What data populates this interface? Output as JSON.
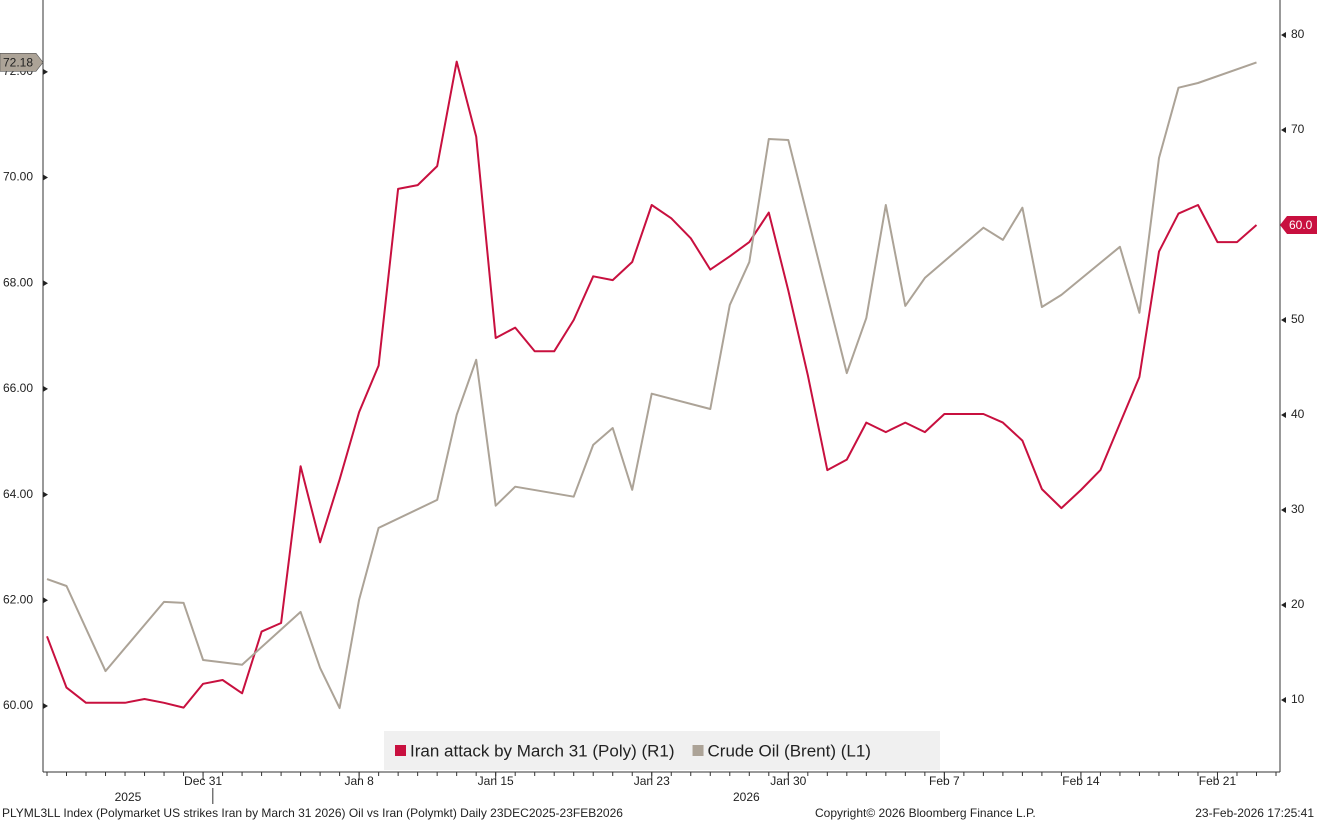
{
  "chart_data": {
    "type": "line",
    "x": [
      "2025-12-23",
      "2025-12-24",
      "2025-12-25",
      "2025-12-26",
      "2025-12-27",
      "2025-12-28",
      "2025-12-29",
      "2025-12-30",
      "2025-12-31",
      "2026-01-01",
      "2026-01-02",
      "2026-01-03",
      "2026-01-04",
      "2026-01-05",
      "2026-01-06",
      "2026-01-07",
      "2026-01-08",
      "2026-01-09",
      "2026-01-10",
      "2026-01-11",
      "2026-01-12",
      "2026-01-13",
      "2026-01-14",
      "2026-01-15",
      "2026-01-16",
      "2026-01-17",
      "2026-01-18",
      "2026-01-19",
      "2026-01-20",
      "2026-01-21",
      "2026-01-22",
      "2026-01-23",
      "2026-01-24",
      "2026-01-25",
      "2026-01-26",
      "2026-01-27",
      "2026-01-28",
      "2026-01-29",
      "2026-01-30",
      "2026-01-31",
      "2026-02-01",
      "2026-02-02",
      "2026-02-03",
      "2026-02-04",
      "2026-02-05",
      "2026-02-06",
      "2026-02-07",
      "2026-02-08",
      "2026-02-09",
      "2026-02-10",
      "2026-02-11",
      "2026-02-12",
      "2026-02-13",
      "2026-02-14",
      "2026-02-15",
      "2026-02-16",
      "2026-02-17",
      "2026-02-18",
      "2026-02-19",
      "2026-02-20",
      "2026-02-21",
      "2026-02-22",
      "2026-02-23"
    ],
    "series": [
      {
        "name": "Iran attack by March 31 (Poly) (R1)",
        "color": "#c8103f",
        "axis": "y2",
        "end_label": "60.0",
        "values": [
          16.7,
          11.3,
          9.7,
          9.7,
          9.7,
          10.1,
          9.7,
          9.2,
          11.7,
          12.1,
          10.7,
          17.2,
          18.1,
          34.6,
          26.6,
          33.2,
          40.3,
          45.2,
          63.8,
          64.2,
          66.2,
          77.2,
          69.3,
          48.1,
          49.2,
          46.7,
          46.7,
          50.0,
          54.6,
          54.2,
          56.1,
          62.1,
          60.7,
          58.6,
          55.3,
          56.7,
          58.2,
          61.3,
          53.1,
          44.2,
          34.2,
          35.3,
          39.2,
          38.2,
          39.2,
          38.2,
          40.1,
          40.1,
          40.1,
          39.2,
          37.3,
          32.2,
          30.2,
          32.1,
          34.2,
          39.1,
          44.0,
          57.2,
          61.2,
          62.1,
          58.2,
          58.2,
          60.0
        ]
      },
      {
        "name": "Crude Oil (Brent) (L1)",
        "color": "#aca397",
        "end_label": "72.18",
        "x": [
          "2025-12-23",
          "2025-12-24",
          "2025-12-26",
          "2025-12-29",
          "2025-12-30",
          "2025-12-31",
          "2026-01-02",
          "2026-01-05",
          "2026-01-06",
          "2026-01-07",
          "2026-01-08",
          "2026-01-09",
          "2026-01-12",
          "2026-01-13",
          "2026-01-14",
          "2026-01-15",
          "2026-01-16",
          "2026-01-19",
          "2026-01-20",
          "2026-01-21",
          "2026-01-22",
          "2026-01-23",
          "2026-01-26",
          "2026-01-27",
          "2026-01-28",
          "2026-01-29",
          "2026-01-30",
          "2026-02-02",
          "2026-02-03",
          "2026-02-04",
          "2026-02-05",
          "2026-02-06",
          "2026-02-09",
          "2026-02-10",
          "2026-02-11",
          "2026-02-12",
          "2026-02-13",
          "2026-02-16",
          "2026-02-17",
          "2026-02-18",
          "2026-02-19",
          "2026-02-20",
          "2026-02-23"
        ],
        "values": [
          62.4,
          62.27,
          60.66,
          61.97,
          61.95,
          60.87,
          60.78,
          61.78,
          60.72,
          59.96,
          62.01,
          63.37,
          63.9,
          65.51,
          66.55,
          63.79,
          64.15,
          63.96,
          64.94,
          65.26,
          64.09,
          65.91,
          65.62,
          67.59,
          68.4,
          70.73,
          70.71,
          66.3,
          67.34,
          69.48,
          67.57,
          68.1,
          69.05,
          68.82,
          69.43,
          67.55,
          67.78,
          68.69,
          67.44,
          70.37,
          71.7,
          71.79,
          72.18
        ]
      }
    ],
    "xlim": [
      "2025-12-23",
      "2026-02-24"
    ],
    "xticks": [
      {
        "value": "2025-12-31",
        "label": "Dec 31"
      },
      {
        "value": "2026-01-08",
        "label": "Jan 8"
      },
      {
        "value": "2026-01-15",
        "label": "Jan 15"
      },
      {
        "value": "2026-01-23",
        "label": "Jan 23"
      },
      {
        "value": "2026-01-30",
        "label": "Jan 30"
      },
      {
        "value": "2026-02-07",
        "label": "Feb 7"
      },
      {
        "value": "2026-02-14",
        "label": "Feb 14"
      },
      {
        "value": "2026-02-21",
        "label": "Feb 21"
      }
    ],
    "years": [
      "2025",
      "2026"
    ],
    "ylim": [
      58.75,
      73.36
    ],
    "yticks": [
      {
        "value": 60,
        "label": "60.00"
      },
      {
        "value": 62,
        "label": "62.00"
      },
      {
        "value": 64,
        "label": "64.00"
      },
      {
        "value": 66,
        "label": "66.00"
      },
      {
        "value": 68,
        "label": "68.00"
      },
      {
        "value": 70,
        "label": "70.00"
      },
      {
        "value": 72,
        "label": "72.00"
      }
    ],
    "y2lim": [
      2.42,
      83.68
    ],
    "y2ticks": [
      10,
      20,
      30,
      40,
      50,
      60,
      70,
      80
    ],
    "footer_left": "PLYML3LL Index (Polymarket US strikes Iran by March 31 2026) Oil vs Iran (Polymkt) Daily 23DEC2025-23FEB2026",
    "footer_center": "Copyright© 2026 Bloomberg Finance L.P.",
    "footer_right": "23-Feb-2026 17:25:41"
  }
}
